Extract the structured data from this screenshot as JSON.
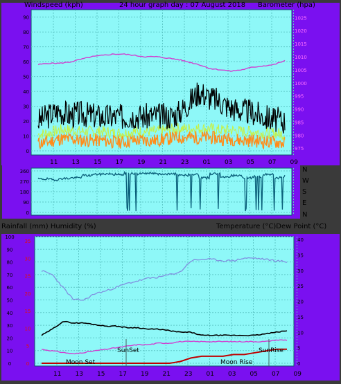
{
  "colors": {
    "background": "#3a3a3a",
    "band": "#7a10f0",
    "plot": "#8ef8f8",
    "grid": "#5ec8c8",
    "wind_gust": "#000000",
    "wind_avg": "#ff8c1a",
    "wind_light": "#c8f040",
    "barometer": "#d040d0",
    "direction": "#0a5f7a",
    "temperature": "#000000",
    "dew_point": "#d040d0",
    "humidity": "#8090e0",
    "rainfall": "#c00000",
    "rain_ticks": "#e01010"
  },
  "header": {
    "left": "Windspeed (kph)",
    "center": "24 hour graph day : 07 August 2018",
    "right": "Barometer (hpa)"
  },
  "direction_labels": [
    "N",
    "W",
    "S",
    "E",
    "N"
  ],
  "bottom_header": {
    "left": "Rainfall (mm)  Humidity (%)",
    "right": "Temperature (°C)Dew Point (°C)"
  },
  "annotations": {
    "moon_set": "Moon Set",
    "sun_set": "SunSet",
    "moon_rise": "Moon Rise",
    "sun_rise": "SunRise"
  },
  "chart_data": [
    {
      "type": "line",
      "title": "24 hour graph day : 07 August 2018",
      "ylabel": "Windspeed (kph)",
      "y2label": "Barometer (hpa)",
      "x_ticks": [
        "11",
        "13",
        "15",
        "17",
        "19",
        "21",
        "23",
        "01",
        "03",
        "05",
        "07",
        "09"
      ],
      "y_ticks": [
        "0",
        "10",
        "20",
        "30",
        "40",
        "50",
        "60",
        "70",
        "80",
        "90"
      ],
      "y2_ticks": [
        "975",
        "980",
        "985",
        "990",
        "995",
        "1000",
        "1005",
        "1010",
        "1015",
        "1020",
        "1025"
      ],
      "ylim": [
        0,
        95
      ],
      "y2lim": [
        974,
        1028
      ],
      "grid": true,
      "series": [
        {
          "name": "Wind gust",
          "x": [
            0,
            1,
            2,
            3,
            4,
            5,
            6,
            7,
            8,
            9,
            10,
            11,
            12,
            13,
            14,
            15,
            16,
            17,
            18,
            19,
            20,
            21,
            22,
            23
          ],
          "values": [
            20,
            24,
            27,
            24,
            25,
            24,
            23,
            23,
            23,
            24,
            23,
            24,
            23,
            25,
            32,
            40,
            36,
            33,
            29,
            27,
            26,
            23,
            21,
            20
          ]
        },
        {
          "name": "Wind average",
          "x": [
            0,
            1,
            2,
            3,
            4,
            5,
            6,
            7,
            8,
            9,
            10,
            11,
            12,
            13,
            14,
            15,
            16,
            17,
            18,
            19,
            20,
            21,
            22,
            23
          ],
          "values": [
            5,
            6,
            8,
            8,
            7,
            7,
            7,
            6,
            6,
            7,
            7,
            7,
            8,
            9,
            9,
            9,
            9,
            8,
            8,
            7,
            7,
            6,
            6,
            5
          ]
        },
        {
          "name": "Barometer",
          "x": [
            0,
            1,
            2,
            3,
            4,
            5,
            6,
            7,
            8,
            9,
            10,
            11,
            12,
            13,
            14,
            15,
            16,
            17,
            18,
            19,
            20,
            21,
            22,
            23
          ],
          "values": [
            1007,
            1007.5,
            1007.5,
            1008,
            1009,
            1010,
            1010.5,
            1011,
            1011,
            1010.5,
            1010,
            1010,
            1009.5,
            1009,
            1008,
            1007,
            1005.5,
            1005,
            1004.5,
            1005,
            1006,
            1006.5,
            1007,
            1008.5
          ]
        }
      ]
    },
    {
      "type": "line",
      "ylabel": "Wind direction",
      "y_ticks": [
        "0",
        "90",
        "180",
        "270",
        "360"
      ],
      "ylim": [
        0,
        360
      ],
      "series": [
        {
          "name": "Wind direction",
          "x": [
            0,
            1,
            2,
            3,
            4,
            5,
            6,
            7,
            8,
            9,
            10,
            11,
            12,
            13,
            14,
            15,
            16,
            17,
            18,
            19,
            20,
            21,
            22,
            23
          ],
          "values": [
            290,
            285,
            295,
            300,
            320,
            330,
            335,
            330,
            340,
            335,
            340,
            330,
            335,
            320,
            330,
            300,
            335,
            310,
            320,
            300,
            310,
            330,
            300,
            320
          ]
        }
      ]
    },
    {
      "type": "line",
      "ylabel": "Rainfall (mm)  Humidity (%)",
      "y2label": "Temperature (°C)Dew Point (°C)",
      "x_ticks": [
        "11",
        "13",
        "15",
        "17",
        "19",
        "21",
        "23",
        "01",
        "03",
        "05",
        "07",
        "09"
      ],
      "y_ticks": [
        "0",
        "10",
        "20",
        "30",
        "40",
        "50",
        "60",
        "70",
        "80",
        "90",
        "100"
      ],
      "y2_ticks": [
        "0",
        "5",
        "10",
        "15",
        "20",
        "25",
        "30",
        "35",
        "40"
      ],
      "rain_ticks": [
        "0",
        "5",
        "10",
        "15",
        "20",
        "25",
        "30",
        "35"
      ],
      "ylim": [
        0,
        100
      ],
      "y2lim": [
        0,
        40
      ],
      "grid": true,
      "series": [
        {
          "name": "Humidity",
          "x": [
            0,
            1,
            2,
            3,
            4,
            5,
            6,
            7,
            8,
            9,
            10,
            11,
            12,
            13,
            14,
            15,
            16,
            17,
            18,
            19,
            20,
            21,
            22,
            23
          ],
          "values": [
            73,
            70,
            60,
            50,
            50,
            55,
            57,
            60,
            63,
            65,
            67,
            68,
            70,
            72,
            81,
            82,
            82,
            81,
            81,
            83,
            83,
            82,
            81,
            80
          ]
        },
        {
          "name": "Temperature",
          "x": [
            0,
            1,
            2,
            3,
            4,
            5,
            6,
            7,
            8,
            9,
            10,
            11,
            12,
            13,
            14,
            15,
            16,
            17,
            18,
            19,
            20,
            21,
            22,
            23
          ],
          "values": [
            9,
            11,
            13.5,
            13,
            13,
            12.5,
            12,
            12,
            11.5,
            11.5,
            11,
            11,
            10.5,
            10,
            10,
            9,
            9,
            9,
            9,
            9,
            9,
            9.5,
            10,
            10.5
          ]
        },
        {
          "name": "Dew point",
          "x": [
            0,
            1,
            2,
            3,
            4,
            5,
            6,
            7,
            8,
            9,
            10,
            11,
            12,
            13,
            14,
            15,
            16,
            17,
            18,
            19,
            20,
            21,
            22,
            23
          ],
          "values": [
            4.5,
            4,
            3.5,
            3,
            3.5,
            4,
            4.5,
            5,
            5.5,
            6,
            6,
            6.5,
            6.5,
            7,
            7,
            7,
            7,
            7,
            7,
            7,
            7,
            7,
            7.5,
            7.5
          ]
        },
        {
          "name": "Rainfall",
          "x": [
            0,
            1,
            2,
            3,
            4,
            5,
            6,
            7,
            8,
            9,
            10,
            11,
            12,
            13,
            14,
            15,
            16,
            17,
            18,
            19,
            20,
            21,
            22,
            23
          ],
          "values": [
            0,
            0,
            0,
            0,
            0,
            0,
            0,
            0,
            0,
            0,
            0,
            0,
            0,
            0.5,
            1.5,
            2,
            2,
            2,
            2.5,
            2.5,
            3,
            3.5,
            4,
            4
          ]
        }
      ]
    }
  ]
}
